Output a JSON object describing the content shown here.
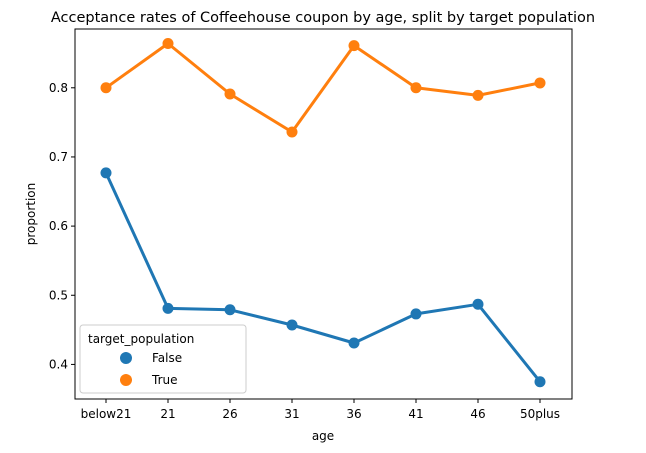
{
  "chart_data": {
    "type": "line",
    "title": "Acceptance rates of Coffeehouse coupon by age, split by target population",
    "xlabel": "age",
    "ylabel": "proportion",
    "categories": [
      "below21",
      "21",
      "26",
      "31",
      "36",
      "41",
      "46",
      "50plus"
    ],
    "yticks": [
      "0.4",
      "0.5",
      "0.6",
      "0.7",
      "0.8"
    ],
    "ylim": [
      0.35,
      0.885
    ],
    "grid": false,
    "legend": {
      "title": "target_population",
      "placement": "lower-left"
    },
    "series": [
      {
        "name": "False",
        "color": "#1f77b4",
        "values": [
          0.677,
          0.481,
          0.479,
          0.457,
          0.431,
          0.473,
          0.487,
          0.375
        ]
      },
      {
        "name": "True",
        "color": "#ff7f0e",
        "values": [
          0.8,
          0.864,
          0.791,
          0.736,
          0.861,
          0.8,
          0.789,
          0.807
        ]
      }
    ]
  }
}
